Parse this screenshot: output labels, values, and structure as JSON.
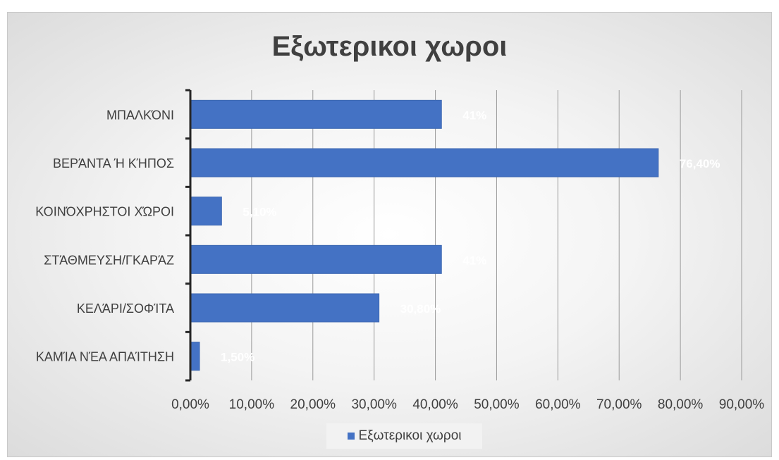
{
  "chart_data": {
    "type": "bar",
    "orientation": "horizontal",
    "title": "Εξωτερικοι χωροι",
    "categories": [
      "ΜΠΑΛΚΌΝΙ",
      "ΒΕΡΆΝΤΑ Ή ΚΉΠΟΣ",
      "ΚΟΙΝΌΧΡΗΣΤΟΙ ΧΏΡΟΙ",
      "ΣΤΆΘΜΕΥΣΗ/ΓΚΑΡΆΖ",
      "ΚΕΛΆΡΙ/ΣΟΦΊΤΑ",
      "ΚΑΜΊΑ ΝΈΑ ΑΠΑΊΤΗΣΗ"
    ],
    "series": [
      {
        "name": "Εξωτερικοι χωροι",
        "values": [
          0.41,
          0.764,
          0.051,
          0.41,
          0.308,
          0.015
        ],
        "data_labels": [
          "41%",
          "76,40%",
          "5,10%",
          "41%",
          "30,80%",
          "1,50%"
        ]
      }
    ],
    "xlim": [
      0,
      0.9
    ],
    "x_ticks": [
      "0,00%",
      "10,00%",
      "20,00%",
      "30,00%",
      "40,00%",
      "50,00%",
      "60,00%",
      "70,00%",
      "80,00%",
      "90,00%"
    ],
    "grid": true,
    "legend_position": "bottom",
    "bar_color": "#4472c4",
    "label_color": "#ffffff"
  }
}
